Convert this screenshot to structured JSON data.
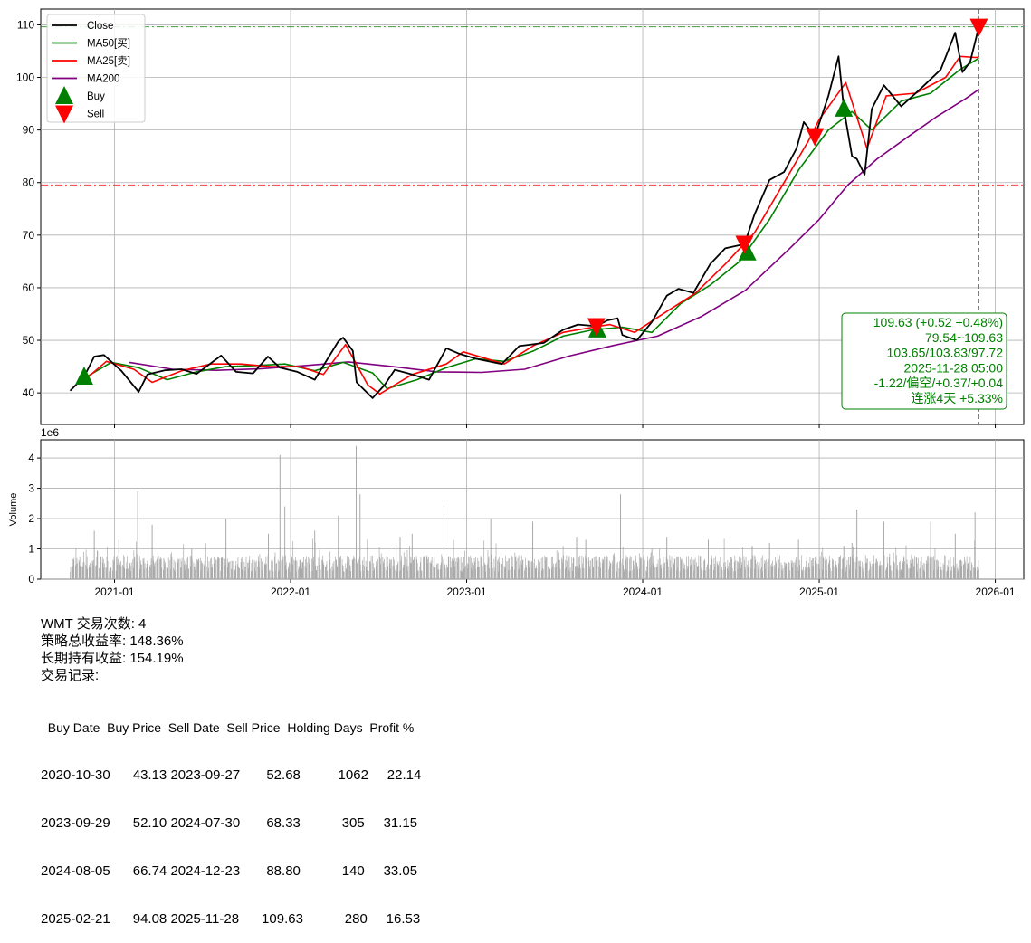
{
  "chart_data": [
    {
      "type": "line",
      "ylim": [
        34,
        113
      ],
      "yticks": [
        40,
        50,
        60,
        70,
        80,
        90,
        100,
        110
      ],
      "xticks": [
        "2021-01",
        "2022-01",
        "2023-01",
        "2024-01",
        "2025-01",
        "2026-01"
      ],
      "xrange": [
        "2020-08-01",
        "2026-03-01"
      ],
      "grid": true,
      "legend_position": "top-left",
      "legend": [
        "Close",
        "MA50[买]",
        "MA25[卖]",
        "MA200",
        "Buy",
        "Sell"
      ],
      "colors": {
        "close": "#000000",
        "ma50": "#008000",
        "ma25": "#ff0000",
        "ma200": "#800080",
        "buy": "#008000",
        "sell": "#ff0000"
      },
      "reference_lines": [
        {
          "y": 109.63,
          "color": "#008000",
          "style": "dash-dot"
        },
        {
          "y": 79.54,
          "color": "#ff0000",
          "style": "dash-dot"
        },
        {
          "x": "2025-11-28",
          "color": "#008000",
          "style": "dashed"
        }
      ],
      "series": [
        {
          "name": "Close",
          "key": "close",
          "points": [
            [
              "2020-10-01",
              40.4
            ],
            [
              "2020-10-30",
              43.1
            ],
            [
              "2020-11-20",
              46.9
            ],
            [
              "2020-12-10",
              47.2
            ],
            [
              "2021-01-15",
              44.2
            ],
            [
              "2021-02-20",
              40.2
            ],
            [
              "2021-03-10",
              43.5
            ],
            [
              "2021-04-15",
              44.3
            ],
            [
              "2021-05-20",
              44.5
            ],
            [
              "2021-06-20",
              43.6
            ],
            [
              "2021-08-10",
              47.1
            ],
            [
              "2021-09-10",
              44.0
            ],
            [
              "2021-10-15",
              43.7
            ],
            [
              "2021-11-15",
              46.9
            ],
            [
              "2021-12-10",
              44.8
            ],
            [
              "2022-01-15",
              44.0
            ],
            [
              "2022-02-20",
              42.5
            ],
            [
              "2022-04-10",
              49.8
            ],
            [
              "2022-04-20",
              50.5
            ],
            [
              "2022-05-10",
              48.0
            ],
            [
              "2022-05-18",
              42.0
            ],
            [
              "2022-06-20",
              39.0
            ],
            [
              "2022-07-15",
              41.5
            ],
            [
              "2022-08-05",
              44.4
            ],
            [
              "2022-09-10",
              43.5
            ],
            [
              "2022-10-15",
              42.5
            ],
            [
              "2022-11-20",
              48.5
            ],
            [
              "2022-12-15",
              47.5
            ],
            [
              "2023-01-20",
              46.5
            ],
            [
              "2023-03-15",
              45.5
            ],
            [
              "2023-04-20",
              48.9
            ],
            [
              "2023-06-10",
              49.5
            ],
            [
              "2023-07-20",
              52.0
            ],
            [
              "2023-08-20",
              53.0
            ],
            [
              "2023-09-27",
              52.7
            ],
            [
              "2023-10-20",
              53.8
            ],
            [
              "2023-11-10",
              54.2
            ],
            [
              "2023-11-20",
              51.0
            ],
            [
              "2023-12-20",
              50.0
            ],
            [
              "2024-01-20",
              53.5
            ],
            [
              "2024-02-20",
              58.5
            ],
            [
              "2024-03-15",
              59.8
            ],
            [
              "2024-04-15",
              59.0
            ],
            [
              "2024-05-20",
              64.5
            ],
            [
              "2024-06-20",
              67.5
            ],
            [
              "2024-07-30",
              68.3
            ],
            [
              "2024-08-20",
              74.0
            ],
            [
              "2024-09-20",
              80.5
            ],
            [
              "2024-10-20",
              82.0
            ],
            [
              "2024-11-15",
              86.5
            ],
            [
              "2024-11-30",
              91.5
            ],
            [
              "2024-12-23",
              88.8
            ],
            [
              "2025-01-20",
              96.5
            ],
            [
              "2025-02-10",
              104.0
            ],
            [
              "2025-02-21",
              94.1
            ],
            [
              "2025-03-10",
              85.0
            ],
            [
              "2025-03-20",
              84.5
            ],
            [
              "2025-04-05",
              81.5
            ],
            [
              "2025-04-20",
              94.0
            ],
            [
              "2025-05-15",
              98.5
            ],
            [
              "2025-06-20",
              94.5
            ],
            [
              "2025-08-01",
              98.0
            ],
            [
              "2025-09-10",
              101.5
            ],
            [
              "2025-10-10",
              108.5
            ],
            [
              "2025-10-25",
              101.0
            ],
            [
              "2025-11-10",
              103.0
            ],
            [
              "2025-11-28",
              109.63
            ]
          ]
        },
        {
          "name": "MA50[买]",
          "key": "ma50",
          "points": [
            [
              "2020-10-25",
              42.5
            ],
            [
              "2020-12-25",
              45.8
            ],
            [
              "2021-02-20",
              44.8
            ],
            [
              "2021-04-20",
              42.5
            ],
            [
              "2021-06-20",
              44.0
            ],
            [
              "2021-08-20",
              45.0
            ],
            [
              "2021-10-20",
              45.2
            ],
            [
              "2021-12-20",
              45.5
            ],
            [
              "2022-02-20",
              44.2
            ],
            [
              "2022-04-20",
              45.8
            ],
            [
              "2022-06-20",
              43.8
            ],
            [
              "2022-07-20",
              40.8
            ],
            [
              "2022-09-20",
              42.5
            ],
            [
              "2022-11-20",
              44.8
            ],
            [
              "2023-01-20",
              46.5
            ],
            [
              "2023-03-20",
              46.0
            ],
            [
              "2023-05-20",
              48.0
            ],
            [
              "2023-07-20",
              50.8
            ],
            [
              "2023-09-20",
              52.0
            ],
            [
              "2023-11-20",
              52.5
            ],
            [
              "2024-01-20",
              51.5
            ],
            [
              "2024-03-20",
              57.0
            ],
            [
              "2024-05-20",
              60.5
            ],
            [
              "2024-07-20",
              65.0
            ],
            [
              "2024-09-20",
              73.0
            ],
            [
              "2024-11-20",
              82.5
            ],
            [
              "2025-01-20",
              90.0
            ],
            [
              "2025-03-10",
              93.5
            ],
            [
              "2025-04-20",
              90.0
            ],
            [
              "2025-06-20",
              95.5
            ],
            [
              "2025-08-20",
              97.0
            ],
            [
              "2025-10-20",
              101.5
            ],
            [
              "2025-11-28",
              103.65
            ]
          ]
        },
        {
          "name": "MA25[卖]",
          "key": "ma25",
          "points": [
            [
              "2020-10-25",
              42.0
            ],
            [
              "2020-12-15",
              46.0
            ],
            [
              "2021-02-10",
              44.5
            ],
            [
              "2021-03-20",
              42.0
            ],
            [
              "2021-05-20",
              44.2
            ],
            [
              "2021-07-20",
              45.5
            ],
            [
              "2021-09-20",
              45.5
            ],
            [
              "2021-11-20",
              45.0
            ],
            [
              "2022-01-20",
              45.0
            ],
            [
              "2022-03-10",
              43.5
            ],
            [
              "2022-04-25",
              49.2
            ],
            [
              "2022-06-10",
              41.5
            ],
            [
              "2022-07-05",
              39.8
            ],
            [
              "2022-09-10",
              43.5
            ],
            [
              "2022-11-20",
              45.5
            ],
            [
              "2022-12-25",
              47.8
            ],
            [
              "2023-03-20",
              45.5
            ],
            [
              "2023-05-20",
              49.0
            ],
            [
              "2023-07-20",
              51.5
            ],
            [
              "2023-09-20",
              52.5
            ],
            [
              "2023-10-25",
              53.0
            ],
            [
              "2023-12-15",
              51.5
            ],
            [
              "2024-02-20",
              55.5
            ],
            [
              "2024-04-20",
              59.0
            ],
            [
              "2024-06-20",
              64.5
            ],
            [
              "2024-08-20",
              70.5
            ],
            [
              "2024-10-20",
              80.0
            ],
            [
              "2024-12-10",
              88.0
            ],
            [
              "2025-01-01",
              92.0
            ],
            [
              "2025-02-25",
              99.0
            ],
            [
              "2025-04-10",
              86.5
            ],
            [
              "2025-05-20",
              96.5
            ],
            [
              "2025-07-20",
              97.0
            ],
            [
              "2025-09-20",
              100.0
            ],
            [
              "2025-10-20",
              104.0
            ],
            [
              "2025-11-20",
              103.8
            ],
            [
              "2025-11-28",
              103.83
            ]
          ]
        },
        {
          "name": "MA200",
          "key": "ma200",
          "points": [
            [
              "2021-02-01",
              45.8
            ],
            [
              "2021-05-01",
              44.5
            ],
            [
              "2021-08-01",
              44.3
            ],
            [
              "2021-11-01",
              44.6
            ],
            [
              "2022-02-01",
              45.2
            ],
            [
              "2022-05-01",
              45.9
            ],
            [
              "2022-08-01",
              45.0
            ],
            [
              "2022-11-01",
              44.0
            ],
            [
              "2023-02-01",
              43.9
            ],
            [
              "2023-05-01",
              44.5
            ],
            [
              "2023-08-01",
              47.0
            ],
            [
              "2023-11-01",
              49.0
            ],
            [
              "2024-02-01",
              50.8
            ],
            [
              "2024-05-01",
              54.5
            ],
            [
              "2024-08-01",
              59.5
            ],
            [
              "2024-11-01",
              67.5
            ],
            [
              "2025-01-01",
              73.0
            ],
            [
              "2025-03-01",
              79.5
            ],
            [
              "2025-05-01",
              84.5
            ],
            [
              "2025-07-01",
              88.5
            ],
            [
              "2025-09-01",
              92.5
            ],
            [
              "2025-11-01",
              96.0
            ],
            [
              "2025-11-28",
              97.72
            ]
          ]
        }
      ],
      "buy_markers": [
        [
          "2020-10-30",
          43.13
        ],
        [
          "2023-09-29",
          52.1
        ],
        [
          "2024-08-05",
          66.74
        ],
        [
          "2025-02-21",
          94.08
        ]
      ],
      "sell_markers": [
        [
          "2023-09-27",
          52.68
        ],
        [
          "2024-07-30",
          68.33
        ],
        [
          "2024-12-23",
          88.8
        ],
        [
          "2025-11-28",
          109.63
        ]
      ],
      "info_box": [
        "109.63 (+0.52 +0.48%)",
        "79.54~109.63",
        "103.65/103.83/97.72",
        "2025-11-28 05:00",
        "-1.22/偏空/+0.37/+0.04",
        "连涨4天 +5.33%"
      ]
    },
    {
      "type": "bar",
      "ylabel": "Volume",
      "scale_note": "1e6",
      "ylim": [
        0,
        4.6
      ],
      "yticks": [
        0,
        1,
        2,
        3,
        4
      ],
      "color": "#aaaaaa",
      "spikes": [
        [
          "2020-11-20",
          1.6
        ],
        [
          "2021-01-10",
          1.3
        ],
        [
          "2021-02-18",
          2.9
        ],
        [
          "2021-03-20",
          1.8
        ],
        [
          "2021-06-10",
          1.0
        ],
        [
          "2021-08-20",
          2.0
        ],
        [
          "2021-11-16",
          1.5
        ],
        [
          "2021-12-10",
          4.1
        ],
        [
          "2021-12-20",
          2.4
        ],
        [
          "2022-02-20",
          1.6
        ],
        [
          "2022-04-10",
          2.1
        ],
        [
          "2022-05-17",
          4.4
        ],
        [
          "2022-05-25",
          2.8
        ],
        [
          "2022-08-16",
          1.4
        ],
        [
          "2022-09-10",
          1.5
        ],
        [
          "2022-11-15",
          2.5
        ],
        [
          "2023-02-20",
          2.0
        ],
        [
          "2023-05-18",
          1.9
        ],
        [
          "2023-08-17",
          1.4
        ],
        [
          "2023-09-05",
          1.3
        ],
        [
          "2023-11-16",
          2.8
        ],
        [
          "2024-01-20",
          1.0
        ],
        [
          "2024-02-20",
          1.4
        ],
        [
          "2024-05-16",
          1.3
        ],
        [
          "2024-08-15",
          1.1
        ],
        [
          "2024-09-20",
          1.2
        ],
        [
          "2024-11-19",
          1.3
        ],
        [
          "2025-02-21",
          1.1
        ],
        [
          "2025-03-10",
          1.2
        ],
        [
          "2025-03-20",
          2.3
        ],
        [
          "2025-05-15",
          1.9
        ],
        [
          "2025-08-20",
          1.9
        ],
        [
          "2025-10-10",
          1.5
        ],
        [
          "2025-11-20",
          2.2
        ]
      ]
    }
  ],
  "summary": {
    "title": "WMT 交易次数: 4",
    "strategy_return": "策略总收益率: 148.36%",
    "hold_return": "长期持有收益: 154.19%",
    "records_label": "交易记录:"
  },
  "trades": {
    "header": "  Buy Date  Buy Price  Sell Date  Sell Price  Holding Days  Profit %",
    "rows": [
      "2020-10-30      43.13 2023-09-27       52.68          1062     22.14",
      "2023-09-29      52.10 2024-07-30       68.33           305     31.15",
      "2024-08-05      66.74 2024-12-23       88.80           140     33.05",
      "2025-02-21      94.08 2025-11-28      109.63           280     16.53"
    ]
  }
}
